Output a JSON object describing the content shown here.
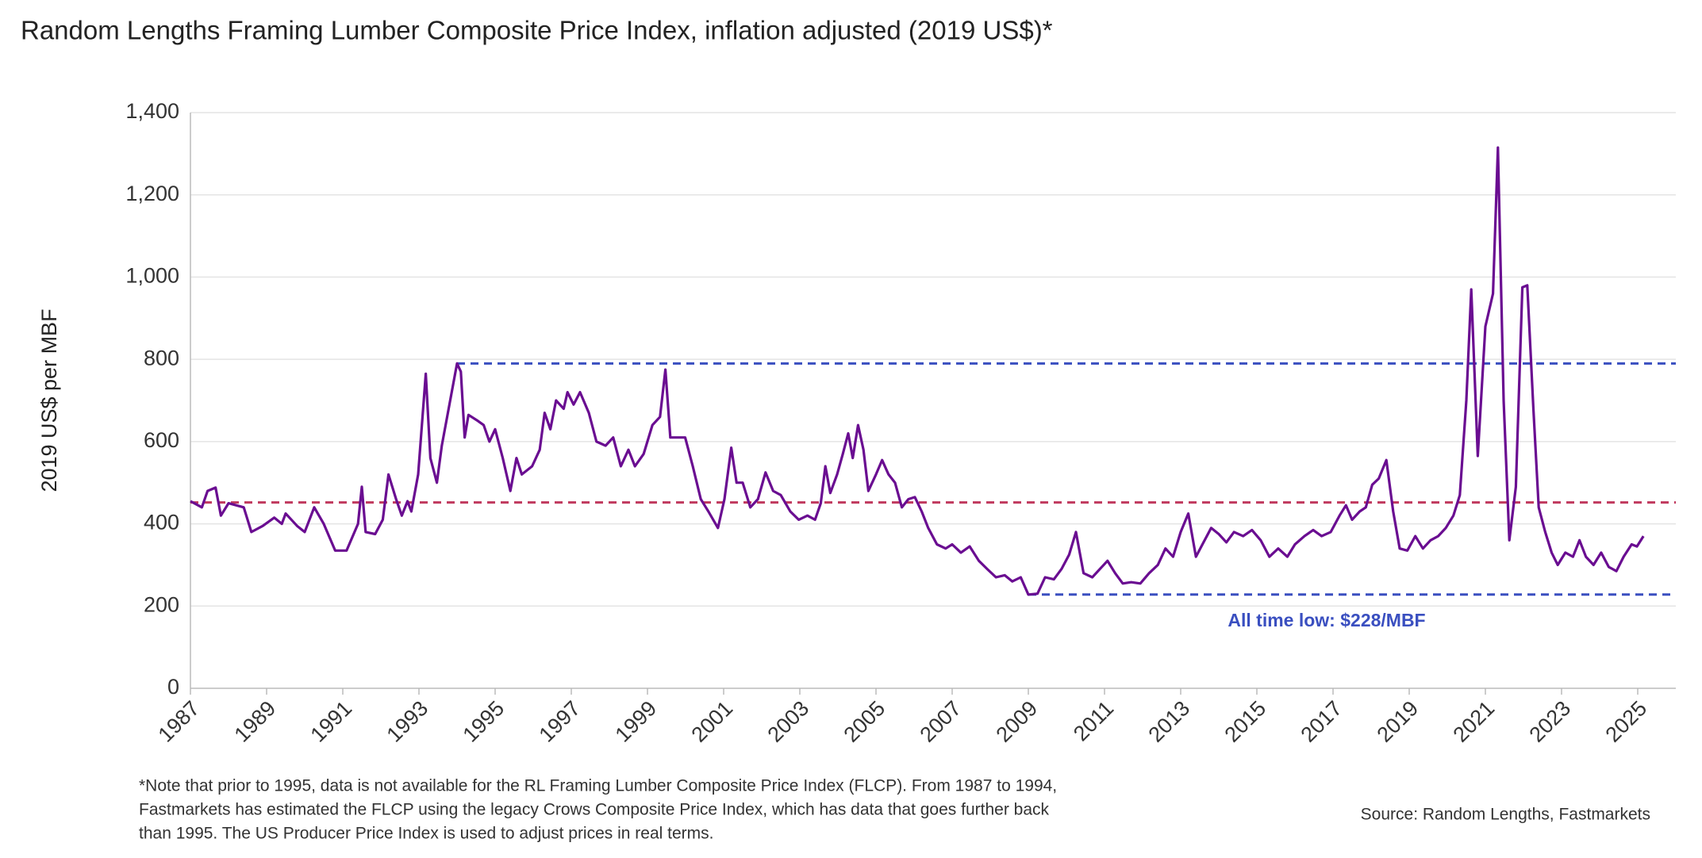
{
  "chart_data": {
    "type": "line",
    "title": "Random Lengths Framing Lumber Composite Price Index, inflation adjusted (2019 US$)*",
    "y_label": "2019 US$ per MBF",
    "annotation": "All time low: $228/MBF",
    "note": [
      "*Note that prior to 1995, data is not available for the RL Framing Lumber Composite Price Index (FLCP). From 1987 to 1994,",
      "Fastmarkets has estimated the FLCP using the legacy Crows Composite Price Index, which has data that goes further back",
      "than 1995. The US Producer Price Index is used to adjust prices in real terms."
    ],
    "source": "Source: Random Lengths, Fastmarkets",
    "color": "#6a0d91",
    "xlim": [
      1987,
      2026
    ],
    "xticks": [
      1987,
      1989,
      1991,
      1993,
      1995,
      1997,
      1999,
      2001,
      2003,
      2005,
      2007,
      2009,
      2011,
      2013,
      2015,
      2017,
      2019,
      2021,
      2023,
      2025
    ],
    "ylim": [
      0,
      1400
    ],
    "yticks": [
      0,
      200,
      400,
      600,
      800,
      {
        "value": 1000,
        "label": "1,000"
      },
      {
        "value": 1200,
        "label": "1,200"
      },
      {
        "value": 1400,
        "label": "1,400"
      }
    ],
    "grid": true,
    "reference_lines": [
      {
        "value": 452,
        "color": "#c0395e",
        "x_start": 1987
      },
      {
        "value": 790,
        "color": "#3a4fc0",
        "x_start": 1994.0
      },
      {
        "value": 228,
        "color": "#3a4fc0",
        "x_start": 2009.0
      }
    ],
    "x": [
      1987.0,
      1987.3,
      1987.45,
      1987.66,
      1987.8,
      1988.0,
      1988.4,
      1988.6,
      1988.9,
      1989.2,
      1989.4,
      1989.5,
      1989.8,
      1990.0,
      1990.25,
      1990.5,
      1990.8,
      1991.1,
      1991.4,
      1991.5,
      1991.6,
      1991.85,
      1992.05,
      1992.2,
      1992.4,
      1992.55,
      1992.7,
      1992.8,
      1992.98,
      1993.18,
      1993.3,
      1993.47,
      1993.6,
      1993.8,
      1994.0,
      1994.1,
      1994.2,
      1994.3,
      1994.55,
      1994.7,
      1994.85,
      1995.0,
      1995.2,
      1995.4,
      1995.56,
      1995.7,
      1995.97,
      1996.17,
      1996.3,
      1996.45,
      1996.6,
      1996.8,
      1996.9,
      1997.06,
      1997.23,
      1997.46,
      1997.66,
      1997.9,
      1998.1,
      1998.3,
      1998.5,
      1998.67,
      1998.9,
      1999.13,
      1999.33,
      1999.47,
      1999.6,
      1999.76,
      1999.99,
      2000.19,
      2000.4,
      2000.6,
      2000.85,
      2001.02,
      2001.2,
      2001.34,
      2001.5,
      2001.7,
      2001.9,
      2002.1,
      2002.3,
      2002.5,
      2002.75,
      2002.97,
      2003.2,
      2003.4,
      2003.55,
      2003.67,
      2003.8,
      2003.98,
      2004.13,
      2004.27,
      2004.39,
      2004.53,
      2004.67,
      2004.8,
      2005.0,
      2005.16,
      2005.33,
      2005.5,
      2005.68,
      2005.85,
      2006.02,
      2006.2,
      2006.37,
      2006.6,
      2006.83,
      2007.0,
      2007.23,
      2007.46,
      2007.7,
      2007.92,
      2008.15,
      2008.38,
      2008.58,
      2008.8,
      2009.0,
      2009.24,
      2009.44,
      2009.67,
      2009.87,
      2010.07,
      2010.25,
      2010.45,
      2010.68,
      2010.88,
      2011.08,
      2011.28,
      2011.48,
      2011.7,
      2011.94,
      2012.17,
      2012.4,
      2012.6,
      2012.8,
      2013.0,
      2013.2,
      2013.4,
      2013.6,
      2013.8,
      2014.0,
      2014.2,
      2014.4,
      2014.64,
      2014.87,
      2015.1,
      2015.33,
      2015.56,
      2015.8,
      2016.0,
      2016.25,
      2016.48,
      2016.7,
      2016.94,
      2017.17,
      2017.34,
      2017.5,
      2017.7,
      2017.86,
      2018.03,
      2018.2,
      2018.4,
      2018.58,
      2018.75,
      2018.95,
      2019.16,
      2019.36,
      2019.56,
      2019.76,
      2019.96,
      2020.16,
      2020.33,
      2020.5,
      2020.63,
      2020.8,
      2021.0,
      2021.2,
      2021.33,
      2021.48,
      2021.63,
      2021.8,
      2021.97,
      2022.1,
      2022.26,
      2022.4,
      2022.57,
      2022.74,
      2022.9,
      2023.1,
      2023.3,
      2023.47,
      2023.64,
      2023.84,
      2024.04,
      2024.24,
      2024.44,
      2024.63,
      2024.84,
      2024.98,
      2025.15
    ],
    "values": [
      455,
      440,
      480,
      488,
      420,
      450,
      440,
      380,
      395,
      415,
      400,
      425,
      395,
      380,
      440,
      400,
      335,
      335,
      400,
      490,
      380,
      375,
      410,
      520,
      460,
      420,
      455,
      430,
      520,
      765,
      560,
      500,
      590,
      690,
      790,
      770,
      610,
      665,
      650,
      640,
      600,
      630,
      560,
      480,
      560,
      520,
      540,
      580,
      670,
      630,
      700,
      680,
      720,
      690,
      720,
      670,
      600,
      590,
      610,
      540,
      580,
      540,
      570,
      640,
      660,
      775,
      610,
      610,
      610,
      540,
      460,
      430,
      390,
      460,
      585,
      500,
      500,
      440,
      460,
      525,
      480,
      470,
      430,
      410,
      420,
      410,
      450,
      540,
      475,
      520,
      570,
      620,
      560,
      640,
      580,
      480,
      520,
      555,
      520,
      500,
      440,
      460,
      465,
      430,
      390,
      350,
      340,
      350,
      330,
      345,
      310,
      290,
      270,
      275,
      260,
      270,
      228,
      230,
      270,
      265,
      290,
      325,
      380,
      280,
      270,
      290,
      310,
      280,
      255,
      258,
      255,
      280,
      300,
      340,
      320,
      380,
      425,
      320,
      355,
      390,
      375,
      355,
      380,
      370,
      385,
      360,
      320,
      340,
      320,
      350,
      370,
      385,
      370,
      380,
      420,
      445,
      410,
      430,
      440,
      495,
      510,
      555,
      430,
      340,
      335,
      370,
      340,
      360,
      370,
      390,
      420,
      470,
      700,
      970,
      565,
      880,
      960,
      1315,
      700,
      360,
      490,
      975,
      980,
      680,
      440,
      380,
      330,
      300,
      330,
      320,
      360,
      320,
      300,
      330,
      295,
      285,
      320,
      350,
      345,
      370
    ]
  }
}
